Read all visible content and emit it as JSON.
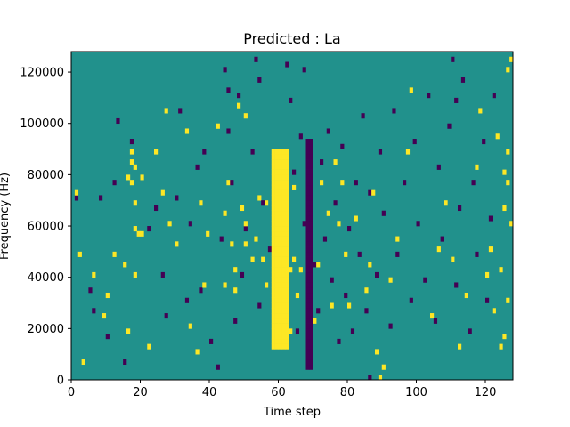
{
  "chart_data": {
    "type": "heatmap",
    "title": "Predicted : La",
    "xlabel": "Time step",
    "ylabel": "Frequency (Hz)",
    "xlim": [
      0,
      128
    ],
    "ylim": [
      0,
      128000
    ],
    "x_ticks": [
      0,
      20,
      40,
      60,
      80,
      100,
      120
    ],
    "x_tick_labels": [
      "0",
      "20",
      "40",
      "60",
      "80",
      "100",
      "120"
    ],
    "y_ticks": [
      0,
      20000,
      40000,
      60000,
      80000,
      100000,
      120000
    ],
    "y_tick_labels": [
      "0",
      "20000",
      "40000",
      "60000",
      "80000",
      "100000",
      "120000"
    ],
    "grid": false,
    "legend": "none",
    "colormap": "viridis",
    "colors": {
      "background": "#21918c",
      "low": "#440154",
      "high": "#fde725"
    },
    "n_time_steps": 128,
    "n_freq_bins": 64,
    "freq_bin_width_hz": 2000,
    "base_value": 0,
    "low_value": -1,
    "high_value": 1,
    "dense_columns": [
      {
        "time_start": 58,
        "time_end": 62,
        "value": 1,
        "freq_min": 12000,
        "freq_max": 90000
      },
      {
        "time_start": 68,
        "time_end": 69,
        "value": -1,
        "freq_min": 4000,
        "freq_max": 94000
      }
    ],
    "high_cells": [
      [
        15,
        22
      ],
      [
        16,
        9
      ],
      [
        16,
        39
      ],
      [
        17,
        38
      ],
      [
        17,
        42
      ],
      [
        17,
        44
      ],
      [
        18,
        20
      ],
      [
        18,
        29
      ],
      [
        18,
        34
      ],
      [
        18,
        41
      ],
      [
        19,
        28
      ],
      [
        20,
        39
      ],
      [
        20,
        28
      ],
      [
        44,
        32
      ],
      [
        44,
        18
      ],
      [
        45,
        38
      ],
      [
        46,
        26
      ],
      [
        47,
        21
      ],
      [
        47,
        17
      ],
      [
        48,
        53
      ],
      [
        49,
        33
      ],
      [
        50,
        30
      ],
      [
        50,
        26
      ],
      [
        50,
        51
      ],
      [
        52,
        23
      ],
      [
        53,
        27
      ],
      [
        54,
        35
      ],
      [
        55,
        23
      ],
      [
        56,
        18
      ],
      [
        56,
        34
      ],
      [
        63,
        9
      ],
      [
        63,
        21
      ],
      [
        64,
        23
      ],
      [
        64,
        37
      ],
      [
        65,
        16
      ],
      [
        66,
        21
      ],
      [
        70,
        11
      ],
      [
        71,
        22
      ],
      [
        72,
        38
      ],
      [
        74,
        32
      ],
      [
        75,
        14
      ],
      [
        76,
        42
      ],
      [
        77,
        30
      ],
      [
        78,
        38
      ],
      [
        79,
        24
      ],
      [
        80,
        14
      ],
      [
        82,
        31
      ],
      [
        85,
        17
      ],
      [
        86,
        22
      ],
      [
        87,
        36
      ],
      [
        88,
        5
      ],
      [
        89,
        0
      ],
      [
        90,
        2
      ],
      [
        92,
        19
      ],
      [
        94,
        27
      ],
      [
        97,
        44
      ],
      [
        98,
        56
      ],
      [
        104,
        12
      ],
      [
        106,
        25
      ],
      [
        108,
        34
      ],
      [
        110,
        23
      ],
      [
        112,
        6
      ],
      [
        114,
        16
      ],
      [
        117,
        41
      ],
      [
        118,
        52
      ],
      [
        120,
        20
      ],
      [
        121,
        25
      ],
      [
        122,
        13
      ],
      [
        123,
        47
      ],
      [
        124,
        21
      ],
      [
        125,
        33
      ],
      [
        125,
        40
      ],
      [
        126,
        38
      ],
      [
        126,
        44
      ],
      [
        126,
        60
      ],
      [
        127,
        62
      ],
      [
        127,
        30
      ],
      [
        126,
        15
      ],
      [
        124,
        6
      ],
      [
        125,
        8
      ],
      [
        30,
        26
      ],
      [
        34,
        10
      ],
      [
        36,
        5
      ],
      [
        37,
        34
      ],
      [
        38,
        18
      ],
      [
        39,
        28
      ],
      [
        42,
        49
      ],
      [
        28,
        30
      ],
      [
        26,
        36
      ],
      [
        24,
        44
      ],
      [
        12,
        24
      ],
      [
        10,
        16
      ],
      [
        9,
        12
      ],
      [
        6,
        20
      ],
      [
        3,
        3
      ],
      [
        2,
        24
      ],
      [
        1,
        36
      ],
      [
        22,
        6
      ],
      [
        27,
        52
      ],
      [
        33,
        48
      ]
    ],
    "low_cells": [
      [
        1,
        35
      ],
      [
        5,
        17
      ],
      [
        6,
        13
      ],
      [
        8,
        35
      ],
      [
        10,
        8
      ],
      [
        12,
        38
      ],
      [
        13,
        50
      ],
      [
        15,
        3
      ],
      [
        17,
        46
      ],
      [
        22,
        29
      ],
      [
        24,
        33
      ],
      [
        26,
        20
      ],
      [
        27,
        12
      ],
      [
        30,
        35
      ],
      [
        31,
        52
      ],
      [
        33,
        15
      ],
      [
        34,
        30
      ],
      [
        36,
        41
      ],
      [
        37,
        17
      ],
      [
        38,
        44
      ],
      [
        40,
        7
      ],
      [
        43,
        27
      ],
      [
        45,
        48
      ],
      [
        46,
        38
      ],
      [
        47,
        11
      ],
      [
        48,
        55
      ],
      [
        49,
        20
      ],
      [
        50,
        29
      ],
      [
        52,
        44
      ],
      [
        54,
        14
      ],
      [
        55,
        34
      ],
      [
        57,
        25
      ],
      [
        64,
        40
      ],
      [
        65,
        9
      ],
      [
        66,
        47
      ],
      [
        67,
        30
      ],
      [
        67,
        60
      ],
      [
        70,
        22
      ],
      [
        71,
        13
      ],
      [
        72,
        42
      ],
      [
        73,
        27
      ],
      [
        74,
        48
      ],
      [
        75,
        19
      ],
      [
        76,
        34
      ],
      [
        77,
        7
      ],
      [
        78,
        45
      ],
      [
        79,
        16
      ],
      [
        80,
        29
      ],
      [
        81,
        9
      ],
      [
        82,
        38
      ],
      [
        83,
        24
      ],
      [
        84,
        51
      ],
      [
        85,
        13
      ],
      [
        86,
        36
      ],
      [
        88,
        20
      ],
      [
        89,
        44
      ],
      [
        90,
        32
      ],
      [
        92,
        10
      ],
      [
        93,
        52
      ],
      [
        94,
        24
      ],
      [
        96,
        38
      ],
      [
        98,
        15
      ],
      [
        99,
        46
      ],
      [
        100,
        30
      ],
      [
        102,
        19
      ],
      [
        103,
        55
      ],
      [
        105,
        11
      ],
      [
        106,
        41
      ],
      [
        107,
        27
      ],
      [
        109,
        49
      ],
      [
        111,
        18
      ],
      [
        112,
        33
      ],
      [
        113,
        58
      ],
      [
        115,
        9
      ],
      [
        116,
        38
      ],
      [
        117,
        24
      ],
      [
        119,
        46
      ],
      [
        120,
        15
      ],
      [
        121,
        31
      ],
      [
        122,
        55
      ],
      [
        86,
        0
      ],
      [
        62,
        61
      ],
      [
        63,
        54
      ],
      [
        44,
        60
      ],
      [
        45,
        56
      ],
      [
        53,
        62
      ],
      [
        54,
        58
      ],
      [
        110,
        62
      ],
      [
        111,
        54
      ],
      [
        42,
        2
      ]
    ]
  }
}
